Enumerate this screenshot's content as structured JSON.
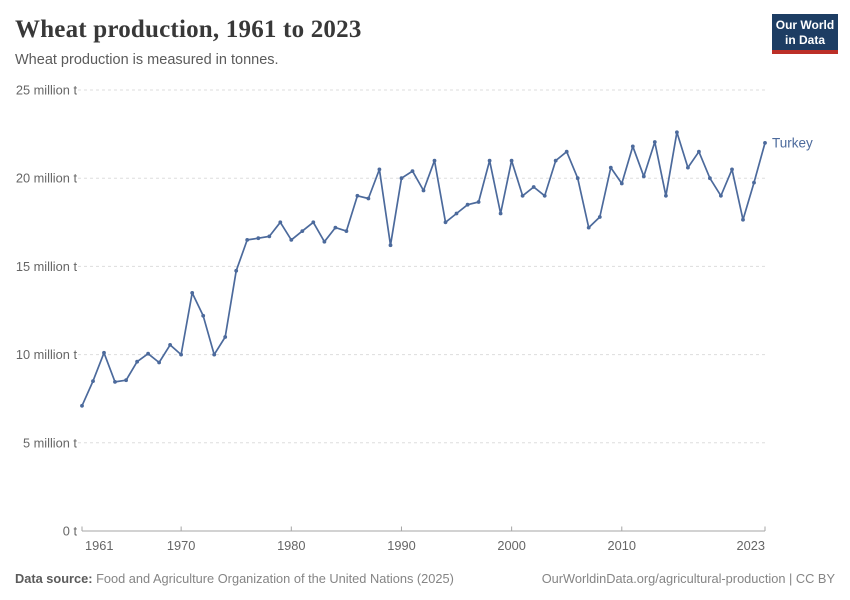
{
  "header": {
    "title": "Wheat production, 1961 to 2023",
    "subtitle": "Wheat production is measured in tonnes."
  },
  "logo": {
    "line1": "Our World",
    "line2": "in Data"
  },
  "footer": {
    "source_label": "Data source:",
    "source_text": " Food and Agriculture Organization of the United Nations (2025)",
    "attribution": "OurWorldinData.org/agricultural-production | CC BY"
  },
  "colors": {
    "line": "#4C6A9C",
    "entity_label": "#4C6A9C",
    "gridline": "#DDDDDD",
    "axis": "#A5A5A5",
    "tick_text": "#666666",
    "title_text": "#383838",
    "subtitle_text": "#5B5B5B",
    "footer_text": "#858585",
    "logo_bg": "#1D3D63",
    "logo_red": "#BC2F28"
  },
  "chart_data": {
    "type": "line",
    "title": "Wheat production, 1961 to 2023",
    "unit": "tonnes",
    "xlabel": "",
    "ylabel": "",
    "ylim_million_tonnes": [
      0,
      25
    ],
    "grid": "dashed horizontal",
    "legend_position": "end-of-line entity label",
    "y_ticks": [
      {
        "value": 0,
        "label": "0 t"
      },
      {
        "value": 5,
        "label": "5 million t"
      },
      {
        "value": 10,
        "label": "10 million t"
      },
      {
        "value": 15,
        "label": "15 million t"
      },
      {
        "value": 20,
        "label": "20 million t"
      },
      {
        "value": 25,
        "label": "25 million t"
      }
    ],
    "x_ticks": [
      1961,
      1970,
      1980,
      1990,
      2000,
      2010,
      2023
    ],
    "series": [
      {
        "name": "Turkey",
        "x": [
          1961,
          1962,
          1963,
          1964,
          1965,
          1966,
          1967,
          1968,
          1969,
          1970,
          1971,
          1972,
          1973,
          1974,
          1975,
          1976,
          1977,
          1978,
          1979,
          1980,
          1981,
          1982,
          1983,
          1984,
          1985,
          1986,
          1987,
          1988,
          1989,
          1990,
          1991,
          1992,
          1993,
          1994,
          1995,
          1996,
          1997,
          1998,
          1999,
          2000,
          2001,
          2002,
          2003,
          2004,
          2005,
          2006,
          2007,
          2008,
          2009,
          2010,
          2011,
          2012,
          2013,
          2014,
          2015,
          2016,
          2017,
          2018,
          2019,
          2020,
          2021,
          2022,
          2023
        ],
        "values_million_tonnes": [
          7.1,
          8.5,
          10.1,
          8.45,
          8.55,
          9.6,
          10.05,
          9.55,
          10.55,
          10.0,
          13.5,
          12.2,
          10.0,
          11.0,
          14.75,
          16.5,
          16.6,
          16.7,
          17.5,
          16.5,
          17.0,
          17.5,
          16.4,
          17.2,
          17.0,
          19.0,
          18.85,
          20.5,
          16.2,
          20.0,
          20.4,
          19.3,
          21.0,
          17.5,
          18.0,
          18.5,
          18.65,
          21.0,
          18.0,
          21.0,
          19.0,
          19.5,
          19.0,
          21.0,
          21.5,
          20.0,
          17.2,
          17.8,
          20.6,
          19.7,
          21.8,
          20.1,
          22.05,
          19.0,
          22.6,
          20.6,
          21.5,
          20.0,
          19.0,
          20.5,
          17.65,
          19.75,
          22.0
        ]
      }
    ]
  }
}
